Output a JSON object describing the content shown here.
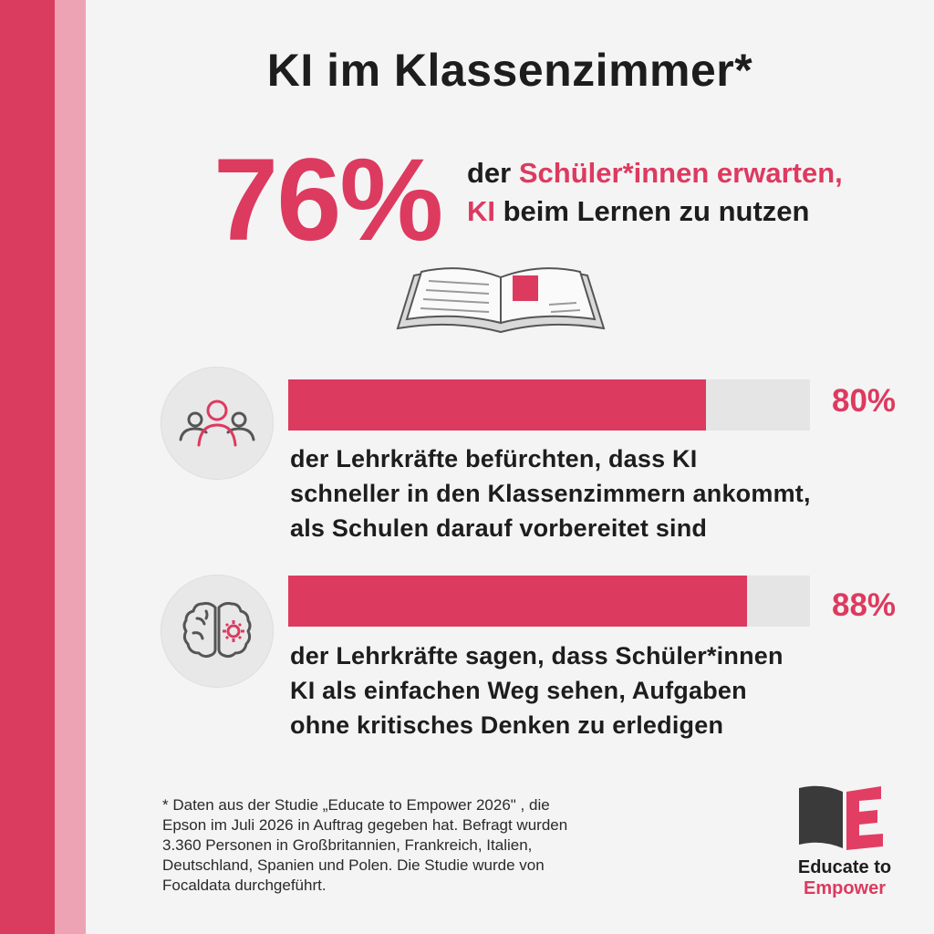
{
  "title": "KI im Klassenzimmer*",
  "hero": {
    "percent": "76%",
    "line1_prefix": "der ",
    "line1_highlight": "Schüler*innen erwarten,",
    "line2_highlight": "KI",
    "line2_rest": " beim Lernen zu nutzen"
  },
  "stats": [
    {
      "percent_label": "80%",
      "value": 80,
      "icon": "people-icon",
      "lines": [
        "der Lehrkräfte befürchten, dass KI",
        "schneller in den Klassenzimmern ankommt,",
        "als Schulen darauf vorbereitet sind"
      ]
    },
    {
      "percent_label": "88%",
      "value": 88,
      "icon": "brain-gear-icon",
      "lines": [
        "der Lehrkräfte sagen, dass Schüler*innen",
        "KI als einfachen Weg sehen, Aufgaben",
        "ohne kritisches Denken zu erledigen"
      ]
    }
  ],
  "footnote": [
    "* Daten aus der Studie „Educate to Empower 2026\" , die",
    "Epson im Juli 2026 in Auftrag gegeben hat. Befragt wurden",
    "3.360 Personen in Großbritannien, Frankreich, Italien,",
    "Deutschland, Spanien und Polen. Die Studie wurde von",
    "Focaldata durchgeführt."
  ],
  "logo": {
    "line1": "Educate to",
    "line2": "Empower"
  },
  "colors": {
    "accent": "#dd3a5f",
    "stripe_light": "#eea3b5",
    "text": "#1d1d1d"
  }
}
